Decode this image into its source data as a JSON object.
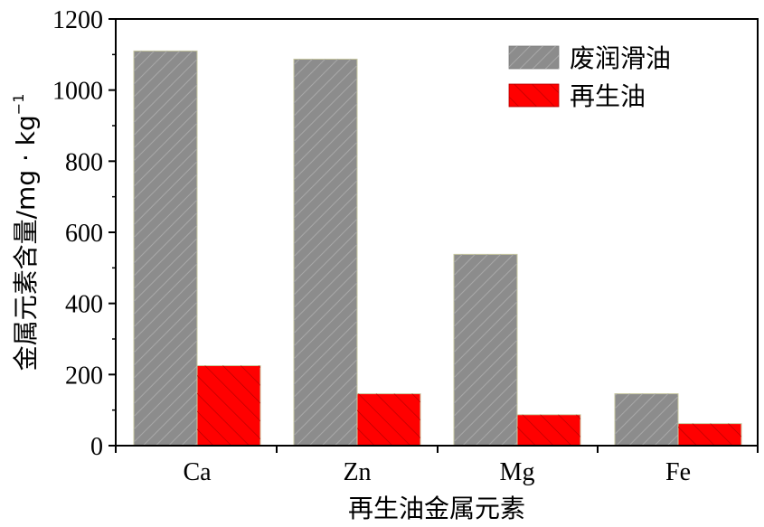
{
  "chart_data": {
    "type": "bar",
    "categories": [
      "Ca",
      "Zn",
      "Mg",
      "Fe"
    ],
    "series": [
      {
        "name": "废润滑油",
        "values": [
          1110,
          1087,
          538,
          146
        ],
        "color": "#8c8c8c",
        "pattern": "hatch-forward"
      },
      {
        "name": "再生油",
        "values": [
          225,
          146,
          87,
          62
        ],
        "color": "#ff0000",
        "pattern": "hatch-backward"
      }
    ],
    "xlabel": "再生油金属元素",
    "ylabel": "金属元素含量/mg · kg",
    "ylabel_superscript": "−1",
    "ylim": [
      0,
      1200
    ],
    "yticks": [
      0,
      200,
      400,
      600,
      800,
      1000,
      1200
    ],
    "grid": false,
    "legend_position": "top-right"
  }
}
